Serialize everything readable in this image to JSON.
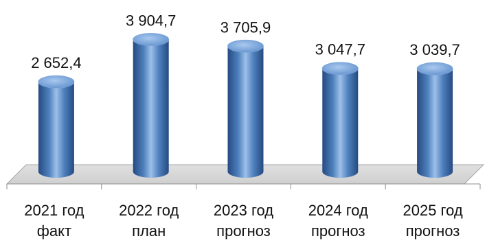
{
  "chart_data": {
    "type": "bar",
    "style": "3d-cylinder",
    "categories": [
      [
        "2021 год",
        "факт"
      ],
      [
        "2022 год",
        "план"
      ],
      [
        "2023 год",
        "прогноз"
      ],
      [
        "2024 год",
        "прогноз"
      ],
      [
        "2025 год",
        "прогноз"
      ]
    ],
    "values": [
      2652.4,
      3904.7,
      3705.9,
      3047.7,
      3039.7
    ],
    "value_labels": [
      "2 652,4",
      "3 904,7",
      "3 705,9",
      "3 047,7",
      "3 039,7"
    ],
    "title": "",
    "xlabel": "",
    "ylabel": "",
    "ylim": [
      0,
      4300
    ],
    "grid": false,
    "legend": "none",
    "colors": {
      "bar_main": "#4f81bd",
      "bar_dark": "#254a82",
      "bar_light": "#9dc0ea",
      "floor": "#cfcfcf",
      "floor_edge": "#a6a6a6",
      "axis": "#8c8c8c"
    }
  }
}
